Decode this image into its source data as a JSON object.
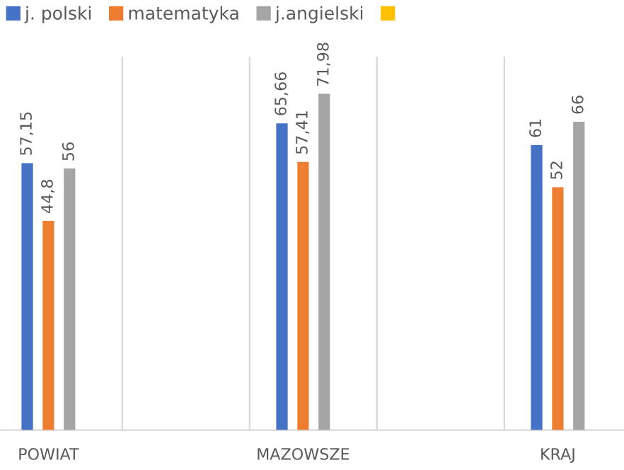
{
  "chart_data": {
    "type": "bar",
    "categories": [
      "POWIAT",
      "MAZOWSZE",
      "KRAJ"
    ],
    "series": [
      {
        "name": "j. polski",
        "color": "#4472c4",
        "values": [
          57.15,
          65.66,
          61
        ],
        "value_labels": [
          "57,15",
          "65,66",
          "61"
        ]
      },
      {
        "name": "matematyka",
        "color": "#ed7d31",
        "values": [
          44.8,
          57.41,
          52
        ],
        "value_labels": [
          "44,8",
          "57,41",
          "52"
        ]
      },
      {
        "name": "j.angielski",
        "color": "#a5a5a5",
        "values": [
          56,
          71.98,
          66
        ],
        "value_labels": [
          "56",
          "71,98",
          "66"
        ]
      },
      {
        "color": "#ffc000",
        "values": [
          null,
          null,
          null
        ]
      }
    ],
    "ylim": [
      0,
      80
    ],
    "grid": "x",
    "legend": "top left"
  }
}
